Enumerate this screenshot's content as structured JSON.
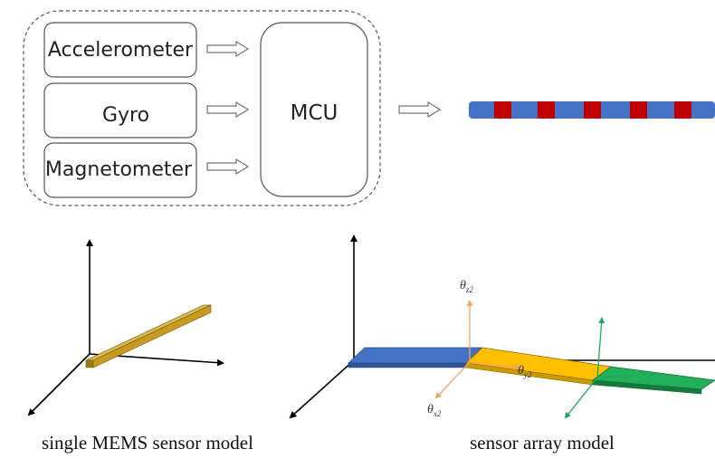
{
  "system_block": {
    "sensors": [
      {
        "label": "Accelerometer"
      },
      {
        "label": "Gyro"
      },
      {
        "label": "Magnetometer"
      }
    ],
    "mcu_label": "MCU"
  },
  "sensor_strip": {
    "colors": {
      "base": "#4472c4",
      "segment": "#c00000"
    },
    "red_segment_count": 5
  },
  "single_model": {
    "caption": "single MEMS sensor model",
    "plate_color": "#d4a628"
  },
  "array_model": {
    "caption": "sensor array model",
    "segment_colors": [
      "#4472c4",
      "#ffc000",
      "#22b05a"
    ],
    "angles": [
      {
        "symbol": "θ",
        "subscript": "z2",
        "color": "#f4a460"
      },
      {
        "symbol": "θ",
        "subscript": "y2",
        "color": "#f4a460"
      },
      {
        "symbol": "θ",
        "subscript": "x2",
        "color": "#f4a460"
      }
    ]
  }
}
